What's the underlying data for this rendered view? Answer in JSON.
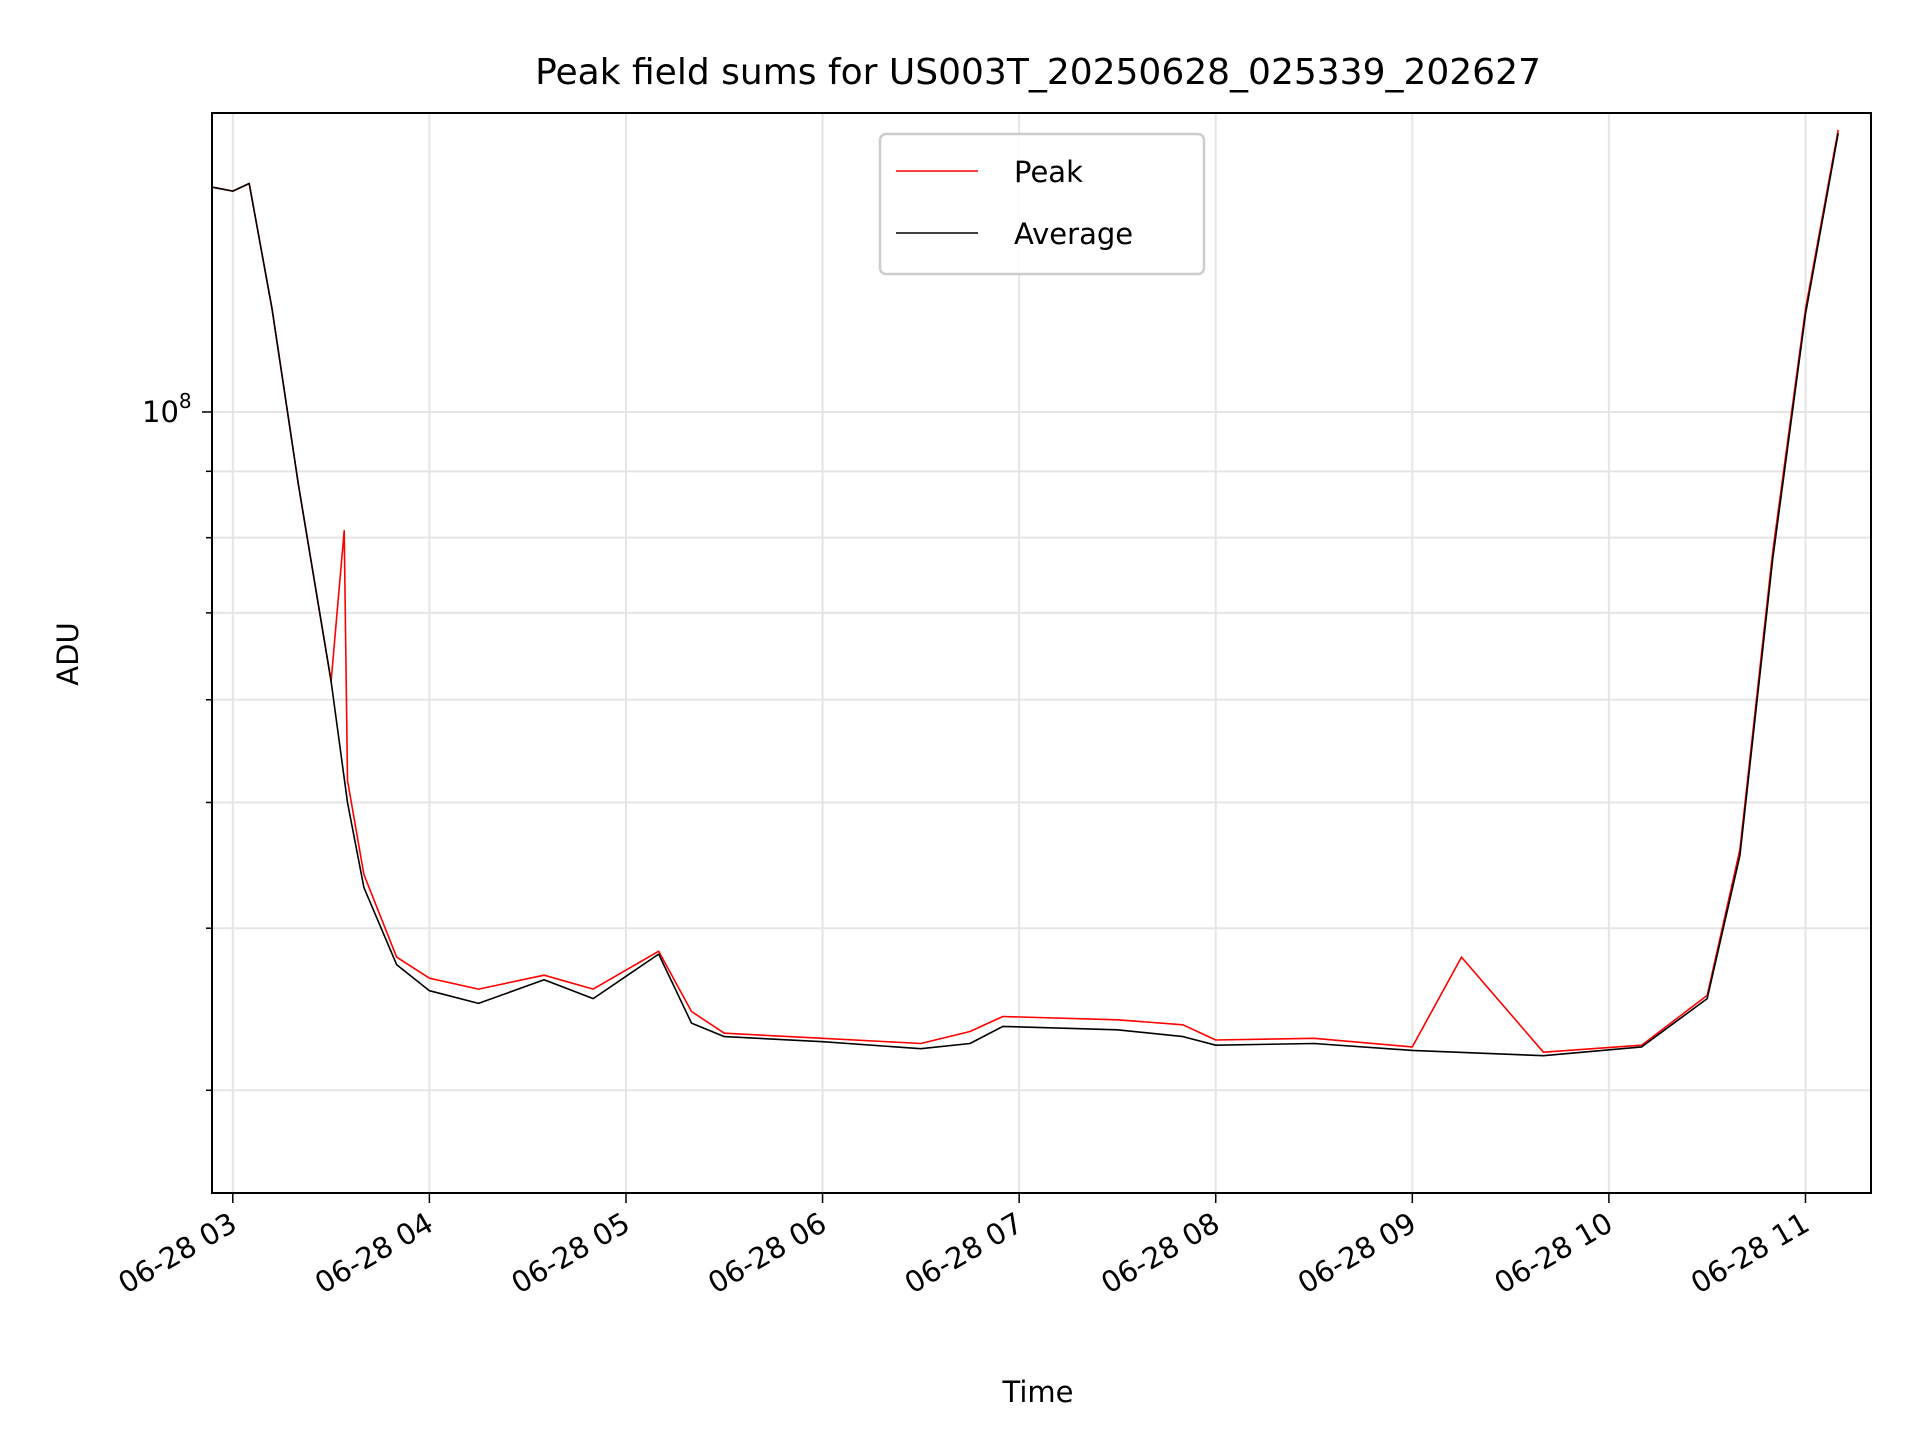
{
  "chart_data": {
    "type": "line",
    "title": "Peak field sums for US003T_20250628_025339_202627",
    "xlabel": "Time",
    "ylabel": "ADU",
    "yscale": "log",
    "ylim": [
      25000000,
      170000000
    ],
    "xlim": [
      "2025-06-28 02:53:39",
      "2025-06-28 11:20:00"
    ],
    "x_ticks": [
      "06-28 03",
      "06-28 04",
      "06-28 05",
      "06-28 06",
      "06-28 07",
      "06-28 08",
      "06-28 09",
      "06-28 10",
      "06-28 11"
    ],
    "y_ticks": [
      {
        "label": "10",
        "exponent": "8",
        "value": 100000000
      }
    ],
    "grid": true,
    "legend": {
      "position": "top-center",
      "entries": [
        "Peak",
        "Average"
      ]
    },
    "series": [
      {
        "name": "Peak",
        "color": "#ff0000",
        "points": [
          [
            "2025-06-28 02:54",
            149000000
          ],
          [
            "2025-06-28 03:00",
            148000000
          ],
          [
            "2025-06-28 03:05",
            150000000
          ],
          [
            "2025-06-28 03:12",
            120000000
          ],
          [
            "2025-06-28 03:20",
            88000000
          ],
          [
            "2025-06-28 03:30",
            62000000
          ],
          [
            "2025-06-28 03:34",
            81000000
          ],
          [
            "2025-06-28 03:35",
            52000000
          ],
          [
            "2025-06-28 03:40",
            44000000
          ],
          [
            "2025-06-28 03:50",
            38000000
          ],
          [
            "2025-06-28 04:00",
            36600000
          ],
          [
            "2025-06-28 04:15",
            35900000
          ],
          [
            "2025-06-28 04:35",
            36800000
          ],
          [
            "2025-06-28 04:50",
            35900000
          ],
          [
            "2025-06-28 05:10",
            38400000
          ],
          [
            "2025-06-28 05:20",
            34500000
          ],
          [
            "2025-06-28 05:30",
            33200000
          ],
          [
            "2025-06-28 06:00",
            32900000
          ],
          [
            "2025-06-28 06:30",
            32600000
          ],
          [
            "2025-06-28 06:45",
            33300000
          ],
          [
            "2025-06-28 06:55",
            34200000
          ],
          [
            "2025-06-28 07:30",
            34000000
          ],
          [
            "2025-06-28 07:50",
            33700000
          ],
          [
            "2025-06-28 08:00",
            32800000
          ],
          [
            "2025-06-28 08:30",
            32900000
          ],
          [
            "2025-06-28 09:00",
            32400000
          ],
          [
            "2025-06-28 09:15",
            38000000
          ],
          [
            "2025-06-28 09:40",
            32100000
          ],
          [
            "2025-06-28 10:10",
            32500000
          ],
          [
            "2025-06-28 10:30",
            35500000
          ],
          [
            "2025-06-28 10:40",
            46000000
          ],
          [
            "2025-06-28 10:50",
            78000000
          ],
          [
            "2025-06-28 11:00",
            120000000
          ],
          [
            "2025-06-28 11:10",
            165000000
          ]
        ]
      },
      {
        "name": "Average",
        "color": "#000000",
        "points": [
          [
            "2025-06-28 02:54",
            149000000
          ],
          [
            "2025-06-28 03:00",
            148000000
          ],
          [
            "2025-06-28 03:05",
            150000000
          ],
          [
            "2025-06-28 03:12",
            120000000
          ],
          [
            "2025-06-28 03:20",
            88000000
          ],
          [
            "2025-06-28 03:30",
            62000000
          ],
          [
            "2025-06-28 03:35",
            50000000
          ],
          [
            "2025-06-28 03:40",
            43000000
          ],
          [
            "2025-06-28 03:50",
            37500000
          ],
          [
            "2025-06-28 04:00",
            35800000
          ],
          [
            "2025-06-28 04:15",
            35000000
          ],
          [
            "2025-06-28 04:35",
            36500000
          ],
          [
            "2025-06-28 04:50",
            35300000
          ],
          [
            "2025-06-28 05:10",
            38200000
          ],
          [
            "2025-06-28 05:20",
            33800000
          ],
          [
            "2025-06-28 05:30",
            33000000
          ],
          [
            "2025-06-28 06:00",
            32700000
          ],
          [
            "2025-06-28 06:30",
            32300000
          ],
          [
            "2025-06-28 06:45",
            32600000
          ],
          [
            "2025-06-28 06:55",
            33600000
          ],
          [
            "2025-06-28 07:30",
            33400000
          ],
          [
            "2025-06-28 07:50",
            33000000
          ],
          [
            "2025-06-28 08:00",
            32500000
          ],
          [
            "2025-06-28 08:30",
            32600000
          ],
          [
            "2025-06-28 09:00",
            32200000
          ],
          [
            "2025-06-28 09:40",
            31900000
          ],
          [
            "2025-06-28 10:10",
            32400000
          ],
          [
            "2025-06-28 10:30",
            35300000
          ],
          [
            "2025-06-28 10:40",
            45500000
          ],
          [
            "2025-06-28 10:50",
            77000000
          ],
          [
            "2025-06-28 11:00",
            119000000
          ],
          [
            "2025-06-28 11:10",
            164000000
          ]
        ]
      }
    ]
  }
}
